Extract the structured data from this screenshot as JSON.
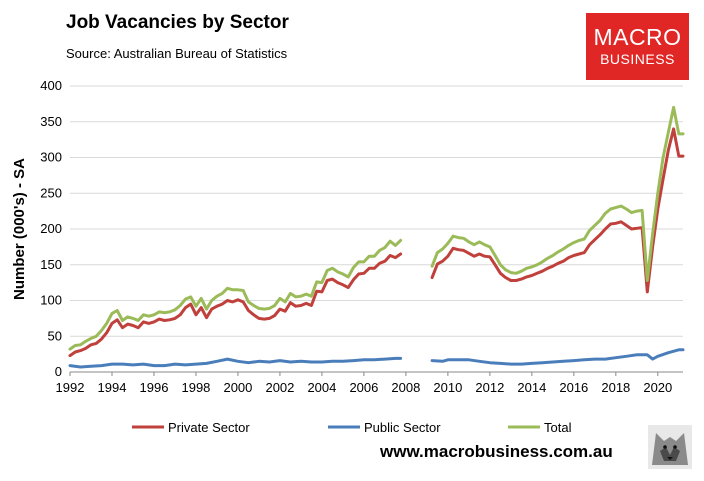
{
  "header": {
    "title": "Job Vacancies by Sector",
    "subtitle": "Source: Australian Bureau of Statistics"
  },
  "logo": {
    "line1": "MACRO",
    "line2": "BUSINESS",
    "color": "#e02726"
  },
  "footer": {
    "website": "www.macrobusiness.com.au"
  },
  "chart_data": {
    "type": "line",
    "title": "Job Vacancies by Sector",
    "ylabel": "Number (000's) - SA",
    "xlabel": "",
    "xlim": [
      1992,
      2021.2
    ],
    "ylim": [
      0,
      400
    ],
    "yticks": [
      0,
      50,
      100,
      150,
      200,
      250,
      300,
      350,
      400
    ],
    "xticks": [
      "1992",
      "1994",
      "1996",
      "1998",
      "2000",
      "2002",
      "2004",
      "2006",
      "2008",
      "2010",
      "2012",
      "2014",
      "2016",
      "2018",
      "2020"
    ],
    "grid": true,
    "legend_position": "bottom",
    "series": [
      {
        "name": "Private Sector",
        "color": "#c0403c",
        "segments": [
          {
            "x": [
              1992,
              1992.25,
              1992.5,
              1992.75,
              1993,
              1993.25,
              1993.5,
              1993.75,
              1994,
              1994.25,
              1994.5,
              1994.75,
              1995,
              1995.25,
              1995.5,
              1995.75,
              1996,
              1996.25,
              1996.5,
              1996.75,
              1997,
              1997.25,
              1997.5,
              1997.75,
              1998,
              1998.25,
              1998.5,
              1998.75,
              1999,
              1999.25,
              1999.5,
              1999.75,
              2000,
              2000.25,
              2000.5,
              2000.75,
              2001,
              2001.25,
              2001.5,
              2001.75,
              2002,
              2002.25,
              2002.5,
              2002.75,
              2003,
              2003.25,
              2003.5,
              2003.75,
              2004,
              2004.25,
              2004.5,
              2004.75,
              2005,
              2005.25,
              2005.5,
              2005.75,
              2006,
              2006.25,
              2006.5,
              2006.75,
              2007,
              2007.25,
              2007.5,
              2007.75
            ],
            "y": [
              23,
              28,
              30,
              33,
              38,
              40,
              46,
              55,
              68,
              73,
              62,
              67,
              65,
              62,
              70,
              68,
              70,
              74,
              72,
              73,
              75,
              80,
              90,
              95,
              80,
              90,
              76,
              88,
              92,
              95,
              100,
              98,
              101,
              98,
              86,
              80,
              75,
              74,
              75,
              79,
              88,
              85,
              97,
              92,
              93,
              96,
              93,
              113,
              112,
              128,
              130,
              125,
              122,
              118,
              129,
              137,
              138,
              145,
              145,
              152,
              155,
              163,
              160,
              165
            ]
          },
          {
            "x": [
              2009.25,
              2009.5,
              2009.75,
              2010,
              2010.25,
              2010.5,
              2010.75,
              2011,
              2011.25,
              2011.5,
              2011.75,
              2012,
              2012.25,
              2012.5,
              2012.75,
              2013,
              2013.25,
              2013.5,
              2013.75,
              2014,
              2014.25,
              2014.5,
              2014.75,
              2015,
              2015.25,
              2015.5,
              2015.75,
              2016,
              2016.25,
              2016.5,
              2016.75,
              2017,
              2017.25,
              2017.5,
              2017.75,
              2018,
              2018.25,
              2018.5,
              2018.75,
              2019,
              2019.25,
              2019.5,
              2019.75,
              2020,
              2020.25,
              2020.5,
              2020.75,
              2021,
              2021.2
            ],
            "y": [
              132,
              151,
              155,
              162,
              173,
              171,
              170,
              166,
              162,
              165,
              162,
              161,
              150,
              138,
              132,
              128,
              128,
              130,
              133,
              135,
              138,
              141,
              145,
              148,
              152,
              155,
              160,
              163,
              165,
              167,
              178,
              185,
              192,
              200,
              207,
              208,
              210,
              205,
              200,
              201,
              202,
              112,
              175,
              228,
              270,
              310,
              340,
              302,
              302
            ]
          }
        ]
      },
      {
        "name": "Public Sector",
        "color": "#4a7ebb",
        "segments": [
          {
            "x": [
              1992,
              1992.5,
              1993,
              1993.5,
              1994,
              1994.5,
              1995,
              1995.5,
              1996,
              1996.5,
              1997,
              1997.5,
              1998,
              1998.5,
              1999,
              1999.5,
              2000,
              2000.5,
              2001,
              2001.5,
              2002,
              2002.5,
              2003,
              2003.5,
              2004,
              2004.5,
              2005,
              2005.5,
              2006,
              2006.5,
              2007,
              2007.5,
              2007.75
            ],
            "y": [
              9,
              7,
              8,
              9,
              11,
              11,
              10,
              11,
              9,
              9,
              11,
              10,
              11,
              12,
              15,
              18,
              15,
              13,
              15,
              14,
              16,
              14,
              15,
              14,
              14,
              15,
              15,
              16,
              17,
              17,
              18,
              19,
              19
            ]
          },
          {
            "x": [
              2009.25,
              2009.75,
              2010,
              2010.5,
              2011,
              2011.5,
              2012,
              2012.5,
              2013,
              2013.5,
              2014,
              2014.5,
              2015,
              2015.5,
              2016,
              2016.5,
              2017,
              2017.5,
              2018,
              2018.5,
              2019,
              2019.5,
              2019.75,
              2020,
              2020.5,
              2021,
              2021.2
            ],
            "y": [
              16,
              15,
              17,
              17,
              17,
              15,
              13,
              12,
              11,
              11,
              12,
              13,
              14,
              15,
              16,
              17,
              18,
              18,
              20,
              22,
              24,
              24,
              18,
              22,
              27,
              31,
              31
            ]
          }
        ]
      },
      {
        "name": "Total",
        "color": "#9bbb59",
        "segments": [
          {
            "x": [
              1992,
              1992.25,
              1992.5,
              1992.75,
              1993,
              1993.25,
              1993.5,
              1993.75,
              1994,
              1994.25,
              1994.5,
              1994.75,
              1995,
              1995.25,
              1995.5,
              1995.75,
              1996,
              1996.25,
              1996.5,
              1996.75,
              1997,
              1997.25,
              1997.5,
              1997.75,
              1998,
              1998.25,
              1998.5,
              1998.75,
              1999,
              1999.25,
              1999.5,
              1999.75,
              2000,
              2000.25,
              2000.5,
              2000.75,
              2001,
              2001.25,
              2001.5,
              2001.75,
              2002,
              2002.25,
              2002.5,
              2002.75,
              2003,
              2003.25,
              2003.5,
              2003.75,
              2004,
              2004.25,
              2004.5,
              2004.75,
              2005,
              2005.25,
              2005.5,
              2005.75,
              2006,
              2006.25,
              2006.5,
              2006.75,
              2007,
              2007.25,
              2007.5,
              2007.75
            ],
            "y": [
              32,
              37,
              38,
              43,
              47,
              50,
              58,
              68,
              82,
              86,
              72,
              77,
              75,
              72,
              80,
              78,
              80,
              84,
              83,
              84,
              87,
              93,
              102,
              105,
              92,
              103,
              88,
              100,
              106,
              110,
              117,
              115,
              115,
              114,
              98,
              93,
              89,
              88,
              89,
              93,
              103,
              98,
              110,
              105,
              106,
              109,
              106,
              126,
              125,
              142,
              145,
              140,
              137,
              133,
              146,
              154,
              154,
              162,
              162,
              170,
              174,
              183,
              177,
              184
            ]
          },
          {
            "x": [
              2009.25,
              2009.5,
              2009.75,
              2010,
              2010.25,
              2010.5,
              2010.75,
              2011,
              2011.25,
              2011.5,
              2011.75,
              2012,
              2012.25,
              2012.5,
              2012.75,
              2013,
              2013.25,
              2013.5,
              2013.75,
              2014,
              2014.25,
              2014.5,
              2014.75,
              2015,
              2015.25,
              2015.5,
              2015.75,
              2016,
              2016.25,
              2016.5,
              2016.75,
              2017,
              2017.25,
              2017.5,
              2017.75,
              2018,
              2018.25,
              2018.5,
              2018.75,
              2019,
              2019.25,
              2019.5,
              2019.75,
              2020,
              2020.25,
              2020.5,
              2020.75,
              2021,
              2021.2
            ],
            "y": [
              148,
              167,
              172,
              180,
              190,
              188,
              187,
              182,
              178,
              182,
              178,
              175,
              163,
              150,
              143,
              139,
              138,
              141,
              145,
              147,
              150,
              154,
              159,
              163,
              168,
              172,
              177,
              181,
              184,
              186,
              198,
              205,
              212,
              222,
              228,
              230,
              232,
              228,
              223,
              225,
              226,
              128,
              193,
              250,
              300,
              335,
              370,
              333,
              333
            ]
          }
        ]
      }
    ]
  }
}
